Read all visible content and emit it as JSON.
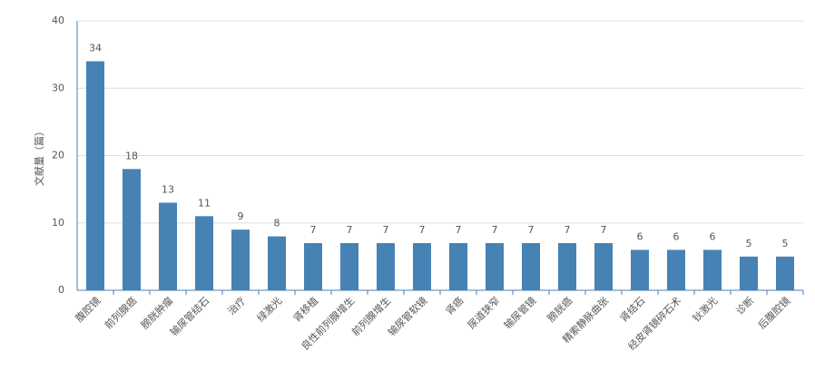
{
  "chart_data": {
    "type": "bar",
    "y_label": "文献量（篇）",
    "categories": [
      "腹腔镜",
      "前列腺癌",
      "膀胱肿瘤",
      "输尿管结石",
      "治疗",
      "绿激光",
      "肾移植",
      "良性前列腺增生",
      "前列腺增生",
      "输尿管软镜",
      "肾癌",
      "尿道狭窄",
      "输尿管镜",
      "膀胱癌",
      "精索静脉曲张",
      "肾结石",
      "经皮肾镜碎石术",
      "钬激光",
      "诊断",
      "后腹腔镜"
    ],
    "values": [
      34,
      18,
      13,
      11,
      9,
      8,
      7,
      7,
      7,
      7,
      7,
      7,
      7,
      7,
      7,
      6,
      6,
      6,
      5,
      5
    ],
    "color": "#4682b4",
    "ylim": [
      0,
      40
    ],
    "yticks": [
      0,
      10,
      20,
      30,
      40
    ],
    "grid": true
  }
}
